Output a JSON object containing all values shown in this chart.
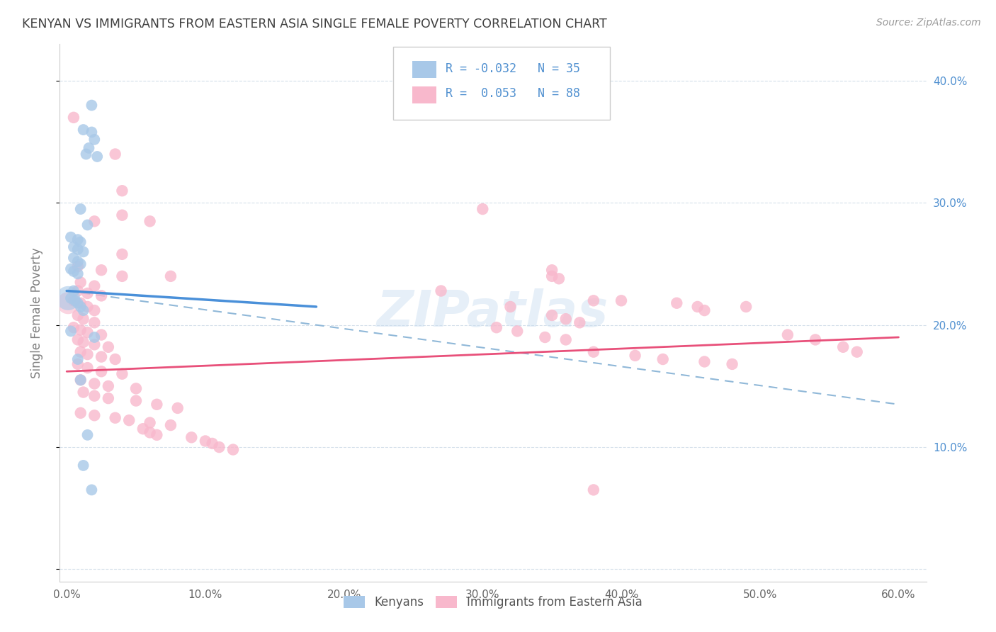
{
  "title": "KENYAN VS IMMIGRANTS FROM EASTERN ASIA SINGLE FEMALE POVERTY CORRELATION CHART",
  "source": "Source: ZipAtlas.com",
  "ylabel": "Single Female Poverty",
  "x_ticks": [
    0.0,
    0.1,
    0.2,
    0.3,
    0.4,
    0.5,
    0.6
  ],
  "x_tick_labels": [
    "0.0%",
    "10.0%",
    "20.0%",
    "30.0%",
    "40.0%",
    "50.0%",
    "60.0%"
  ],
  "y_ticks": [
    0.0,
    0.1,
    0.2,
    0.3,
    0.4
  ],
  "y_tick_labels_right": [
    "",
    "10.0%",
    "20.0%",
    "30.0%",
    "40.0%"
  ],
  "xlim": [
    -0.005,
    0.62
  ],
  "ylim": [
    -0.01,
    0.43
  ],
  "kenyan_color": "#a8c8e8",
  "kenyan_edge_color": "#7aabda",
  "immigrant_color": "#f8b8cc",
  "immigrant_edge_color": "#e87098",
  "kenyan_line_color": "#4a90d9",
  "immigrant_line_color": "#e8507a",
  "dashed_line_color": "#90b8d8",
  "watermark": "ZIPatlas",
  "kenyan_scatter": [
    [
      0.018,
      0.38
    ],
    [
      0.012,
      0.36
    ],
    [
      0.018,
      0.358
    ],
    [
      0.02,
      0.352
    ],
    [
      0.016,
      0.345
    ],
    [
      0.014,
      0.34
    ],
    [
      0.022,
      0.338
    ],
    [
      0.01,
      0.295
    ],
    [
      0.015,
      0.282
    ],
    [
      0.003,
      0.272
    ],
    [
      0.008,
      0.27
    ],
    [
      0.01,
      0.268
    ],
    [
      0.005,
      0.264
    ],
    [
      0.008,
      0.262
    ],
    [
      0.012,
      0.26
    ],
    [
      0.005,
      0.255
    ],
    [
      0.008,
      0.252
    ],
    [
      0.01,
      0.25
    ],
    [
      0.003,
      0.246
    ],
    [
      0.005,
      0.244
    ],
    [
      0.008,
      0.242
    ],
    [
      0.005,
      0.228
    ],
    [
      0.003,
      0.222
    ],
    [
      0.006,
      0.22
    ],
    [
      0.008,
      0.218
    ],
    [
      0.01,
      0.215
    ],
    [
      0.012,
      0.212
    ],
    [
      0.003,
      0.195
    ],
    [
      0.02,
      0.19
    ],
    [
      0.008,
      0.172
    ],
    [
      0.01,
      0.155
    ],
    [
      0.015,
      0.11
    ],
    [
      0.012,
      0.085
    ],
    [
      0.018,
      0.065
    ]
  ],
  "immigrant_scatter": [
    [
      0.005,
      0.37
    ],
    [
      0.035,
      0.34
    ],
    [
      0.04,
      0.31
    ],
    [
      0.04,
      0.29
    ],
    [
      0.02,
      0.285
    ],
    [
      0.06,
      0.285
    ],
    [
      0.04,
      0.258
    ],
    [
      0.008,
      0.248
    ],
    [
      0.025,
      0.245
    ],
    [
      0.04,
      0.24
    ],
    [
      0.075,
      0.24
    ],
    [
      0.01,
      0.235
    ],
    [
      0.02,
      0.232
    ],
    [
      0.008,
      0.228
    ],
    [
      0.015,
      0.226
    ],
    [
      0.025,
      0.224
    ],
    [
      0.005,
      0.22
    ],
    [
      0.01,
      0.218
    ],
    [
      0.015,
      0.215
    ],
    [
      0.02,
      0.212
    ],
    [
      0.008,
      0.208
    ],
    [
      0.012,
      0.205
    ],
    [
      0.02,
      0.202
    ],
    [
      0.005,
      0.198
    ],
    [
      0.01,
      0.196
    ],
    [
      0.015,
      0.194
    ],
    [
      0.025,
      0.192
    ],
    [
      0.008,
      0.188
    ],
    [
      0.012,
      0.186
    ],
    [
      0.02,
      0.184
    ],
    [
      0.03,
      0.182
    ],
    [
      0.01,
      0.178
    ],
    [
      0.015,
      0.176
    ],
    [
      0.025,
      0.174
    ],
    [
      0.035,
      0.172
    ],
    [
      0.008,
      0.168
    ],
    [
      0.015,
      0.165
    ],
    [
      0.025,
      0.162
    ],
    [
      0.04,
      0.16
    ],
    [
      0.01,
      0.155
    ],
    [
      0.02,
      0.152
    ],
    [
      0.03,
      0.15
    ],
    [
      0.05,
      0.148
    ],
    [
      0.012,
      0.145
    ],
    [
      0.02,
      0.142
    ],
    [
      0.03,
      0.14
    ],
    [
      0.05,
      0.138
    ],
    [
      0.065,
      0.135
    ],
    [
      0.08,
      0.132
    ],
    [
      0.01,
      0.128
    ],
    [
      0.02,
      0.126
    ],
    [
      0.035,
      0.124
    ],
    [
      0.045,
      0.122
    ],
    [
      0.06,
      0.12
    ],
    [
      0.075,
      0.118
    ],
    [
      0.055,
      0.115
    ],
    [
      0.06,
      0.112
    ],
    [
      0.065,
      0.11
    ],
    [
      0.09,
      0.108
    ],
    [
      0.1,
      0.105
    ],
    [
      0.105,
      0.103
    ],
    [
      0.11,
      0.1
    ],
    [
      0.12,
      0.098
    ],
    [
      0.3,
      0.295
    ],
    [
      0.35,
      0.245
    ],
    [
      0.35,
      0.24
    ],
    [
      0.355,
      0.238
    ],
    [
      0.27,
      0.228
    ],
    [
      0.38,
      0.22
    ],
    [
      0.32,
      0.215
    ],
    [
      0.35,
      0.208
    ],
    [
      0.36,
      0.205
    ],
    [
      0.37,
      0.202
    ],
    [
      0.31,
      0.198
    ],
    [
      0.325,
      0.195
    ],
    [
      0.345,
      0.19
    ],
    [
      0.36,
      0.188
    ],
    [
      0.4,
      0.22
    ],
    [
      0.44,
      0.218
    ],
    [
      0.455,
      0.215
    ],
    [
      0.46,
      0.212
    ],
    [
      0.49,
      0.215
    ],
    [
      0.38,
      0.178
    ],
    [
      0.41,
      0.175
    ],
    [
      0.43,
      0.172
    ],
    [
      0.46,
      0.17
    ],
    [
      0.48,
      0.168
    ],
    [
      0.52,
      0.192
    ],
    [
      0.54,
      0.188
    ],
    [
      0.56,
      0.182
    ],
    [
      0.57,
      0.178
    ],
    [
      0.38,
      0.065
    ]
  ],
  "bg_color": "#ffffff",
  "grid_color": "#d0dce8",
  "title_color": "#404040",
  "axis_label_color": "#808080",
  "right_tick_color": "#5090d0",
  "kenyan_line_x": [
    0.0,
    0.18
  ],
  "kenyan_line_y": [
    0.228,
    0.215
  ],
  "dashed_line_x": [
    0.0,
    0.6
  ],
  "dashed_line_y": [
    0.228,
    0.135
  ],
  "immigrant_line_x": [
    0.0,
    0.6
  ],
  "immigrant_line_y": [
    0.162,
    0.19
  ]
}
